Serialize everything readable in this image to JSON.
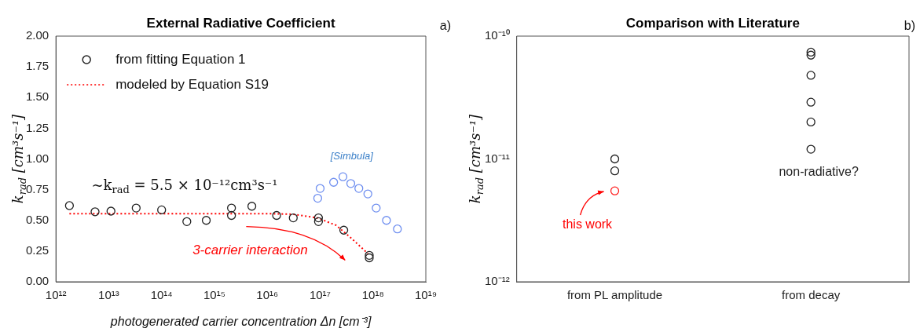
{
  "chart_data": [
    {
      "type": "scatter",
      "title": "External Radiative Coefficient",
      "xlabel": "photogenerated carrier concentration Δn [cm⁻³]",
      "ylabel": "k$_{rad}$ [cm³s⁻¹]",
      "log": "x",
      "xlim": [
        1000000000000.0,
        1e+19
      ],
      "xticks": [
        {
          "value": 1000000000000.0,
          "label": "10¹²"
        },
        {
          "value": 10000000000000.0,
          "label": "10¹³"
        },
        {
          "value": 100000000000000.0,
          "label": "10¹⁴"
        },
        {
          "value": 1000000000000000.0,
          "label": "10¹⁵"
        },
        {
          "value": 1e+16,
          "label": "10¹⁶"
        },
        {
          "value": 1e+17,
          "label": "10¹⁷"
        },
        {
          "value": 1e+18,
          "label": "10¹⁸"
        },
        {
          "value": 1e+19,
          "label": "10¹⁹"
        }
      ],
      "ylim": [
        0,
        2
      ],
      "yticks": [
        {
          "value": 0,
          "label": "0.00"
        },
        {
          "value": 0.25,
          "label": "0.25"
        },
        {
          "value": 0.5,
          "label": "0.50"
        },
        {
          "value": 0.75,
          "label": "0.75"
        },
        {
          "value": 1,
          "label": "1.00"
        },
        {
          "value": 1.25,
          "label": "1.25"
        },
        {
          "value": 1.5,
          "label": "1.50"
        },
        {
          "value": 1.75,
          "label": "1.75"
        },
        {
          "value": 2,
          "label": "2.00"
        }
      ],
      "grid": false,
      "legend": "top left",
      "marker": "circle",
      "series": [
        {
          "name": "from fitting Equation 1",
          "color": "#222222",
          "x": [
            1800000000000.0,
            5500000000000.0,
            11000000000000.0,
            33000000000000.0,
            100000000000000.0,
            300000000000000.0,
            700000000000000.0,
            2100000000000000.0,
            2100000000000000.0,
            5100000000000000.0,
            1.5e+16,
            3.1e+16,
            9.3e+16,
            9.3e+16,
            2.8e+17,
            8.5e+17,
            8.5e+17
          ],
          "values": [
            0.62,
            0.57,
            0.575,
            0.6,
            0.585,
            0.49,
            0.5,
            0.6,
            0.54,
            0.615,
            0.54,
            0.52,
            0.52,
            0.49,
            0.42,
            0.215,
            0.195
          ]
        },
        {
          "name": "modeled by Equation S19",
          "type": "line",
          "line_style": "dotted",
          "marker": "none",
          "color": "#ff0000",
          "x": [
            1800000000000.0,
            100000000000000.0,
            1e+16,
            3e+16,
            9e+16,
            2e+17,
            4e+17,
            8e+17
          ],
          "values": [
            0.555,
            0.555,
            0.555,
            0.55,
            0.52,
            0.46,
            0.35,
            0.23
          ]
        },
        {
          "color": "#6f8ff0",
          "x": [
            9e+16,
            1e+17,
            1.8e+17,
            2.7e+17,
            3.8e+17,
            5.4e+17,
            8e+17,
            1.15e+18,
            1.8e+18,
            2.9e+18
          ],
          "values": [
            0.68,
            0.76,
            0.81,
            0.855,
            0.8,
            0.76,
            0.715,
            0.6,
            0.5,
            0.43
          ]
        }
      ],
      "annotations": [
        "~k$_{rad}$ = 5.5 × 10⁻¹²cm³s⁻¹",
        "[Simbula]",
        "3-carrier interaction",
        "a)"
      ]
    },
    {
      "type": "scatter",
      "title": "Comparison with Literature",
      "ylabel": "k$_{rad}$ [cm³s⁻¹]",
      "categories": [
        "from PL amplitude",
        "from decay"
      ],
      "log": "y",
      "ylim": [
        1e-12,
        1e-10
      ],
      "yticks": [
        {
          "value": 1e-12,
          "label": "10⁻¹²"
        },
        {
          "value": 1e-11,
          "label": "10⁻¹¹"
        },
        {
          "value": 1e-10,
          "label": "10⁻¹⁰"
        }
      ],
      "grid": false,
      "marker": "circle",
      "series": [
        {
          "color": "#222222",
          "x": [
            "from PL amplitude",
            "from PL amplitude",
            "from decay",
            "from decay",
            "from decay",
            "from decay",
            "from decay",
            "from decay"
          ],
          "values": [
            1e-11,
            8e-12,
            7.4e-11,
            7e-11,
            4.8e-11,
            2.9e-11,
            2e-11,
            1.2e-11
          ]
        },
        {
          "color": "#ff2020",
          "x": [
            "from PL amplitude"
          ],
          "values": [
            5.5e-12
          ]
        }
      ],
      "annotations": [
        "this work",
        "non-radiative?",
        "b)"
      ]
    }
  ]
}
